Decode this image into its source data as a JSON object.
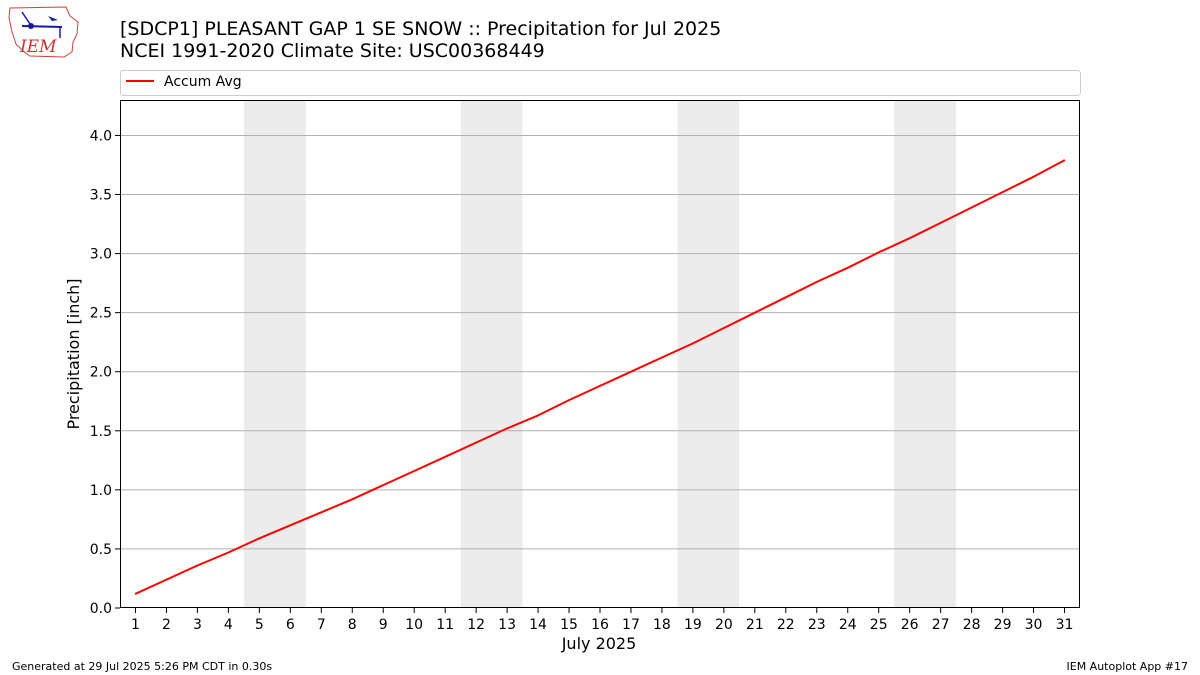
{
  "title_lines": [
    "[SDCP1] PLEASANT GAP 1 SE SNOW :: Precipitation for Jul 2025",
    "NCEI 1991-2020 Climate Site: USC00368449"
  ],
  "logo": {
    "text": "IEM",
    "icon": "iem-logo-icon"
  },
  "footer": {
    "left": "Generated at 29 Jul 2025 5:26 PM CDT in 0.30s",
    "right": "IEM Autoplot App #17"
  },
  "colors": {
    "series": "#ff0000",
    "weekend_band": "#ececec",
    "grid": "#b0b0b0"
  },
  "chart_data": {
    "type": "line",
    "xlabel": "July 2025",
    "ylabel": "Precipitation [inch]",
    "xlim": [
      0.5,
      31.5
    ],
    "ylim": [
      0,
      4.3
    ],
    "yticks": [
      "0.0",
      "0.5",
      "1.0",
      "1.5",
      "2.0",
      "2.5",
      "3.0",
      "3.5",
      "4.0"
    ],
    "xticks": [
      "1",
      "2",
      "3",
      "4",
      "5",
      "6",
      "7",
      "8",
      "9",
      "10",
      "11",
      "12",
      "13",
      "14",
      "15",
      "16",
      "17",
      "18",
      "19",
      "20",
      "21",
      "22",
      "23",
      "24",
      "25",
      "26",
      "27",
      "28",
      "29",
      "30",
      "31"
    ],
    "grid": "horizontal",
    "legend_position": "top",
    "weekend_bands": [
      [
        5,
        6
      ],
      [
        12,
        13
      ],
      [
        19,
        20
      ],
      [
        26,
        27
      ]
    ],
    "series": [
      {
        "name": "Accum Avg",
        "x": [
          1,
          2,
          3,
          4,
          5,
          6,
          7,
          8,
          9,
          10,
          11,
          12,
          13,
          14,
          15,
          16,
          17,
          18,
          19,
          20,
          21,
          22,
          23,
          24,
          25,
          26,
          27,
          28,
          29,
          30,
          31
        ],
        "values": [
          0.12,
          0.24,
          0.36,
          0.47,
          0.59,
          0.7,
          0.81,
          0.92,
          1.04,
          1.16,
          1.28,
          1.4,
          1.52,
          1.63,
          1.76,
          1.88,
          2.0,
          2.12,
          2.24,
          2.37,
          2.5,
          2.63,
          2.76,
          2.88,
          3.01,
          3.13,
          3.26,
          3.39,
          3.52,
          3.65,
          3.79
        ]
      }
    ]
  }
}
